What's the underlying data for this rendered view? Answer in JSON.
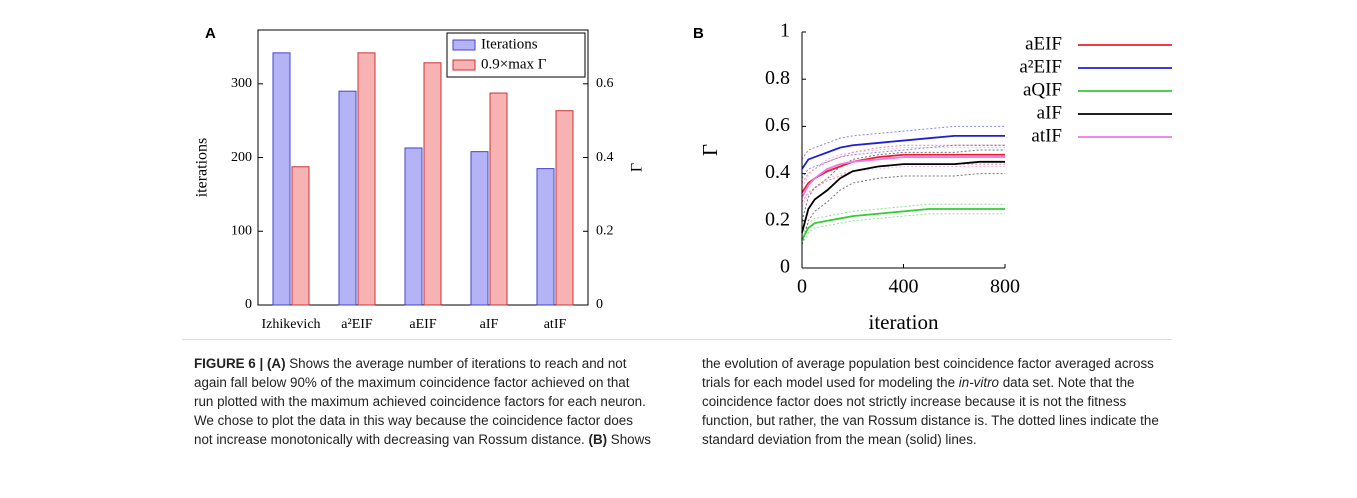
{
  "panels": [
    "A",
    "B"
  ],
  "chart_data": [
    {
      "type": "bar",
      "ylabel": "iterations",
      "y2label": "Γ",
      "categories": [
        "Izhikevich",
        "a²EIF",
        "aEIF",
        "aIF",
        "atIF"
      ],
      "series": [
        {
          "name": "Iterations",
          "color": "#4444cc",
          "fill": "#b3b3f5",
          "values": [
            342,
            290,
            213,
            208,
            185
          ]
        },
        {
          "name": "0.9×max Γ",
          "color": "#cc3333",
          "fill": "#f7b3b3",
          "axis": "y2",
          "values": [
            0.375,
            0.684,
            0.657,
            0.575,
            0.527
          ]
        }
      ],
      "ylim": [
        0,
        373
      ],
      "yticks": [
        0,
        100,
        200,
        300
      ],
      "y2lim": [
        0,
        0.746
      ],
      "y2ticks": [
        0,
        0.2,
        0.4,
        0.6
      ],
      "legend": "upper-right"
    },
    {
      "type": "line",
      "xlabel": "iteration",
      "ylabel": "Γ",
      "x": [
        0,
        25,
        50,
        100,
        150,
        200,
        300,
        400,
        500,
        600,
        700,
        800
      ],
      "series": [
        {
          "name": "aEIF",
          "color": "#e8202a",
          "values": [
            0.32,
            0.36,
            0.38,
            0.41,
            0.43,
            0.45,
            0.47,
            0.48,
            0.48,
            0.48,
            0.48,
            0.48
          ],
          "lower": [
            0.28,
            0.32,
            0.34,
            0.37,
            0.39,
            0.41,
            0.43,
            0.44,
            0.44,
            0.44,
            0.44,
            0.44
          ],
          "upper": [
            0.36,
            0.4,
            0.42,
            0.45,
            0.47,
            0.49,
            0.51,
            0.52,
            0.52,
            0.52,
            0.52,
            0.52
          ]
        },
        {
          "name": "a²EIF",
          "color": "#1f1fd6",
          "values": [
            0.42,
            0.46,
            0.47,
            0.49,
            0.51,
            0.52,
            0.53,
            0.54,
            0.55,
            0.56,
            0.56,
            0.56
          ],
          "lower": [
            0.38,
            0.42,
            0.43,
            0.45,
            0.47,
            0.48,
            0.49,
            0.5,
            0.51,
            0.52,
            0.52,
            0.52
          ],
          "upper": [
            0.46,
            0.5,
            0.51,
            0.53,
            0.55,
            0.56,
            0.57,
            0.58,
            0.59,
            0.6,
            0.6,
            0.6
          ]
        },
        {
          "name": "aQIF",
          "color": "#33cc33",
          "values": [
            0.12,
            0.17,
            0.19,
            0.2,
            0.21,
            0.22,
            0.23,
            0.24,
            0.25,
            0.25,
            0.25,
            0.25
          ],
          "lower": [
            0.1,
            0.15,
            0.17,
            0.18,
            0.19,
            0.2,
            0.21,
            0.22,
            0.23,
            0.23,
            0.23,
            0.23
          ],
          "upper": [
            0.14,
            0.19,
            0.21,
            0.22,
            0.23,
            0.24,
            0.25,
            0.26,
            0.27,
            0.27,
            0.27,
            0.27
          ]
        },
        {
          "name": "aIF",
          "color": "#000000",
          "values": [
            0.15,
            0.25,
            0.29,
            0.33,
            0.38,
            0.41,
            0.43,
            0.44,
            0.44,
            0.44,
            0.45,
            0.45
          ],
          "lower": [
            0.1,
            0.2,
            0.24,
            0.28,
            0.33,
            0.36,
            0.38,
            0.39,
            0.39,
            0.39,
            0.4,
            0.4
          ],
          "upper": [
            0.2,
            0.3,
            0.34,
            0.38,
            0.43,
            0.46,
            0.48,
            0.49,
            0.49,
            0.49,
            0.5,
            0.5
          ]
        },
        {
          "name": "atIF",
          "color": "#ee77ee",
          "values": [
            0.3,
            0.35,
            0.38,
            0.42,
            0.44,
            0.45,
            0.46,
            0.47,
            0.47,
            0.47,
            0.47,
            0.47
          ],
          "lower": [
            0.26,
            0.31,
            0.34,
            0.38,
            0.4,
            0.41,
            0.42,
            0.43,
            0.43,
            0.43,
            0.43,
            0.43
          ],
          "upper": [
            0.34,
            0.39,
            0.42,
            0.46,
            0.48,
            0.49,
            0.5,
            0.51,
            0.51,
            0.51,
            0.51,
            0.51
          ]
        }
      ],
      "xlim": [
        0,
        800
      ],
      "xticks": [
        0,
        400,
        800
      ],
      "ylim": [
        0,
        1
      ],
      "yticks": [
        0,
        0.2,
        0.4,
        0.6,
        0.8,
        1
      ],
      "legend": "outside-right"
    }
  ],
  "caption": {
    "runs": [
      "FIGURE 6 | (A)",
      " Shows the average number of iterations to reach and not again fall below 90% of the maximum coincidence factor achieved on that run plotted with the maximum achieved coincidence factors for each neuron. We chose to plot the data in this way because the coincidence factor does not increase monotonically with decreasing van Rossum distance. ",
      "(B)",
      " Shows the evolution of average population best coincidence factor averaged across trials for each model used for modeling the ",
      "in-vitro",
      " data set. Note that the coincidence factor does not strictly increase because it is not the fitness function, but rather, the van Rossum distance is. The dotted lines indicate the standard deviation from the mean (solid) lines."
    ]
  }
}
